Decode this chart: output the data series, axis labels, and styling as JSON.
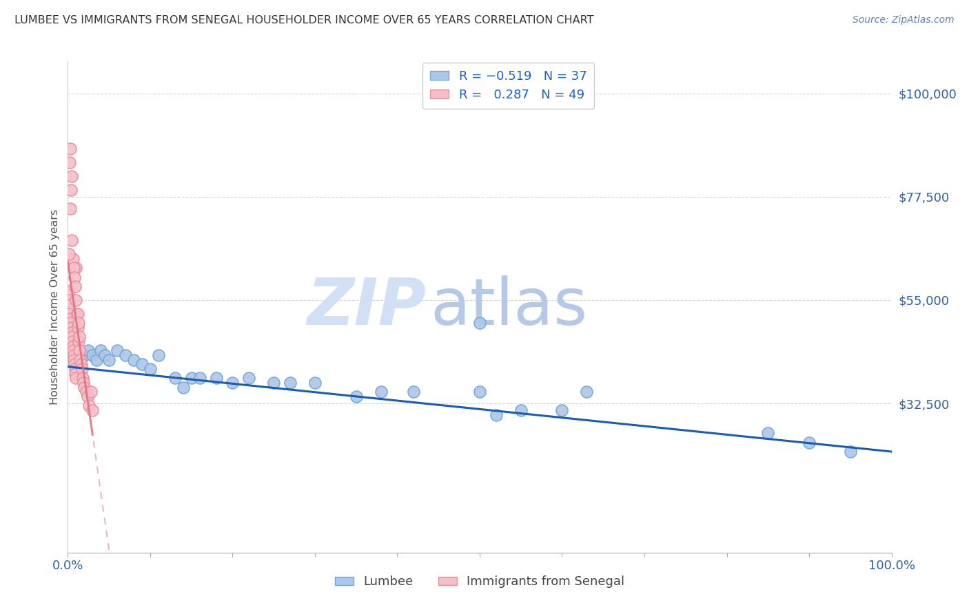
{
  "title": "LUMBEE VS IMMIGRANTS FROM SENEGAL HOUSEHOLDER INCOME OVER 65 YEARS CORRELATION CHART",
  "source": "Source: ZipAtlas.com",
  "ylabel": "Householder Income Over 65 years",
  "yticks": [
    0,
    32500,
    55000,
    77500,
    100000
  ],
  "ytick_labels": [
    "",
    "$32,500",
    "$55,000",
    "$77,500",
    "$100,000"
  ],
  "xmin": 0.0,
  "xmax": 100.0,
  "ymin": 0,
  "ymax": 107000,
  "lumbee_color": "#aec6e8",
  "lumbee_edge": "#6fa8d4",
  "senegal_color": "#f5bfc8",
  "senegal_edge": "#e8909c",
  "trend_lumbee_color": "#1a5cb0",
  "trend_senegal_color": "#e07080",
  "watermark_zip": "ZIP",
  "watermark_atlas": "atlas",
  "watermark_color_zip": "#d0dff5",
  "watermark_color_atlas": "#b8cce8",
  "lumbee_x": [
    1.0,
    1.5,
    2.0,
    2.5,
    3.0,
    3.5,
    4.0,
    4.5,
    5.0,
    6.0,
    7.0,
    8.0,
    9.0,
    10.0,
    11.0,
    13.0,
    14.0,
    15.0,
    16.0,
    18.0,
    20.0,
    22.0,
    25.0,
    27.0,
    30.0,
    35.0,
    38.0,
    42.0,
    50.0,
    52.0,
    55.0,
    60.0,
    63.0,
    85.0,
    90.0,
    95.0,
    50.0
  ],
  "lumbee_y": [
    40000,
    42000,
    43000,
    44000,
    43000,
    42000,
    44000,
    43000,
    42000,
    44000,
    43000,
    42000,
    41000,
    40000,
    43000,
    38000,
    36000,
    38000,
    38000,
    38000,
    37000,
    38000,
    37000,
    37000,
    37000,
    34000,
    35000,
    35000,
    35000,
    30000,
    31000,
    31000,
    35000,
    26000,
    24000,
    22000,
    50000
  ],
  "senegal_x": [
    0.1,
    0.15,
    0.2,
    0.25,
    0.3,
    0.35,
    0.4,
    0.45,
    0.5,
    0.55,
    0.6,
    0.65,
    0.7,
    0.75,
    0.8,
    0.85,
    0.9,
    0.95,
    1.0,
    1.1,
    1.2,
    1.3,
    1.4,
    1.5,
    1.6,
    1.7,
    1.8,
    1.9,
    2.0,
    2.2,
    2.4,
    2.6,
    2.8,
    3.0,
    0.5,
    0.6,
    0.7,
    0.8,
    0.9,
    1.0,
    1.2,
    1.3,
    1.4,
    0.3,
    0.4,
    0.5,
    0.2,
    0.3,
    0.15
  ],
  "senegal_y": [
    57000,
    55000,
    54000,
    52000,
    51000,
    50000,
    49000,
    48000,
    47000,
    46000,
    45000,
    44000,
    43000,
    42000,
    41000,
    40000,
    39000,
    38000,
    62000,
    52000,
    49000,
    46000,
    44000,
    42000,
    41000,
    40000,
    38000,
    37000,
    36000,
    35000,
    34000,
    32000,
    35000,
    31000,
    68000,
    64000,
    62000,
    60000,
    58000,
    55000,
    52000,
    50000,
    47000,
    75000,
    79000,
    82000,
    85000,
    88000,
    65000
  ]
}
